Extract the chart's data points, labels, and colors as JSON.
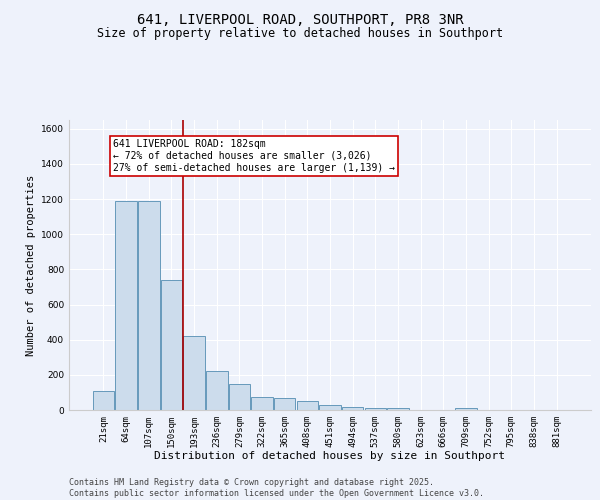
{
  "title": "641, LIVERPOOL ROAD, SOUTHPORT, PR8 3NR",
  "subtitle": "Size of property relative to detached houses in Southport",
  "xlabel": "Distribution of detached houses by size in Southport",
  "ylabel": "Number of detached properties",
  "bar_color": "#ccdcec",
  "bar_edgecolor": "#6699bb",
  "background_color": "#eef2fb",
  "grid_color": "#ffffff",
  "categories": [
    "21sqm",
    "64sqm",
    "107sqm",
    "150sqm",
    "193sqm",
    "236sqm",
    "279sqm",
    "322sqm",
    "365sqm",
    "408sqm",
    "451sqm",
    "494sqm",
    "537sqm",
    "580sqm",
    "623sqm",
    "666sqm",
    "709sqm",
    "752sqm",
    "795sqm",
    "838sqm",
    "881sqm"
  ],
  "values": [
    107,
    1190,
    1190,
    740,
    420,
    220,
    148,
    72,
    70,
    50,
    28,
    17,
    10,
    10,
    0,
    0,
    10,
    0,
    0,
    0,
    0
  ],
  "ylim": [
    0,
    1650
  ],
  "yticks": [
    0,
    200,
    400,
    600,
    800,
    1000,
    1200,
    1400,
    1600
  ],
  "property_line_x": 3.5,
  "property_line_color": "#aa0000",
  "annotation_text": "641 LIVERPOOL ROAD: 182sqm\n← 72% of detached houses are smaller (3,026)\n27% of semi-detached houses are larger (1,139) →",
  "annotation_box_color": "#ffffff",
  "annotation_box_edgecolor": "#cc0000",
  "footer_text": "Contains HM Land Registry data © Crown copyright and database right 2025.\nContains public sector information licensed under the Open Government Licence v3.0.",
  "title_fontsize": 10,
  "subtitle_fontsize": 8.5,
  "xlabel_fontsize": 8,
  "ylabel_fontsize": 7.5,
  "tick_fontsize": 6.5,
  "annotation_fontsize": 7,
  "footer_fontsize": 6
}
